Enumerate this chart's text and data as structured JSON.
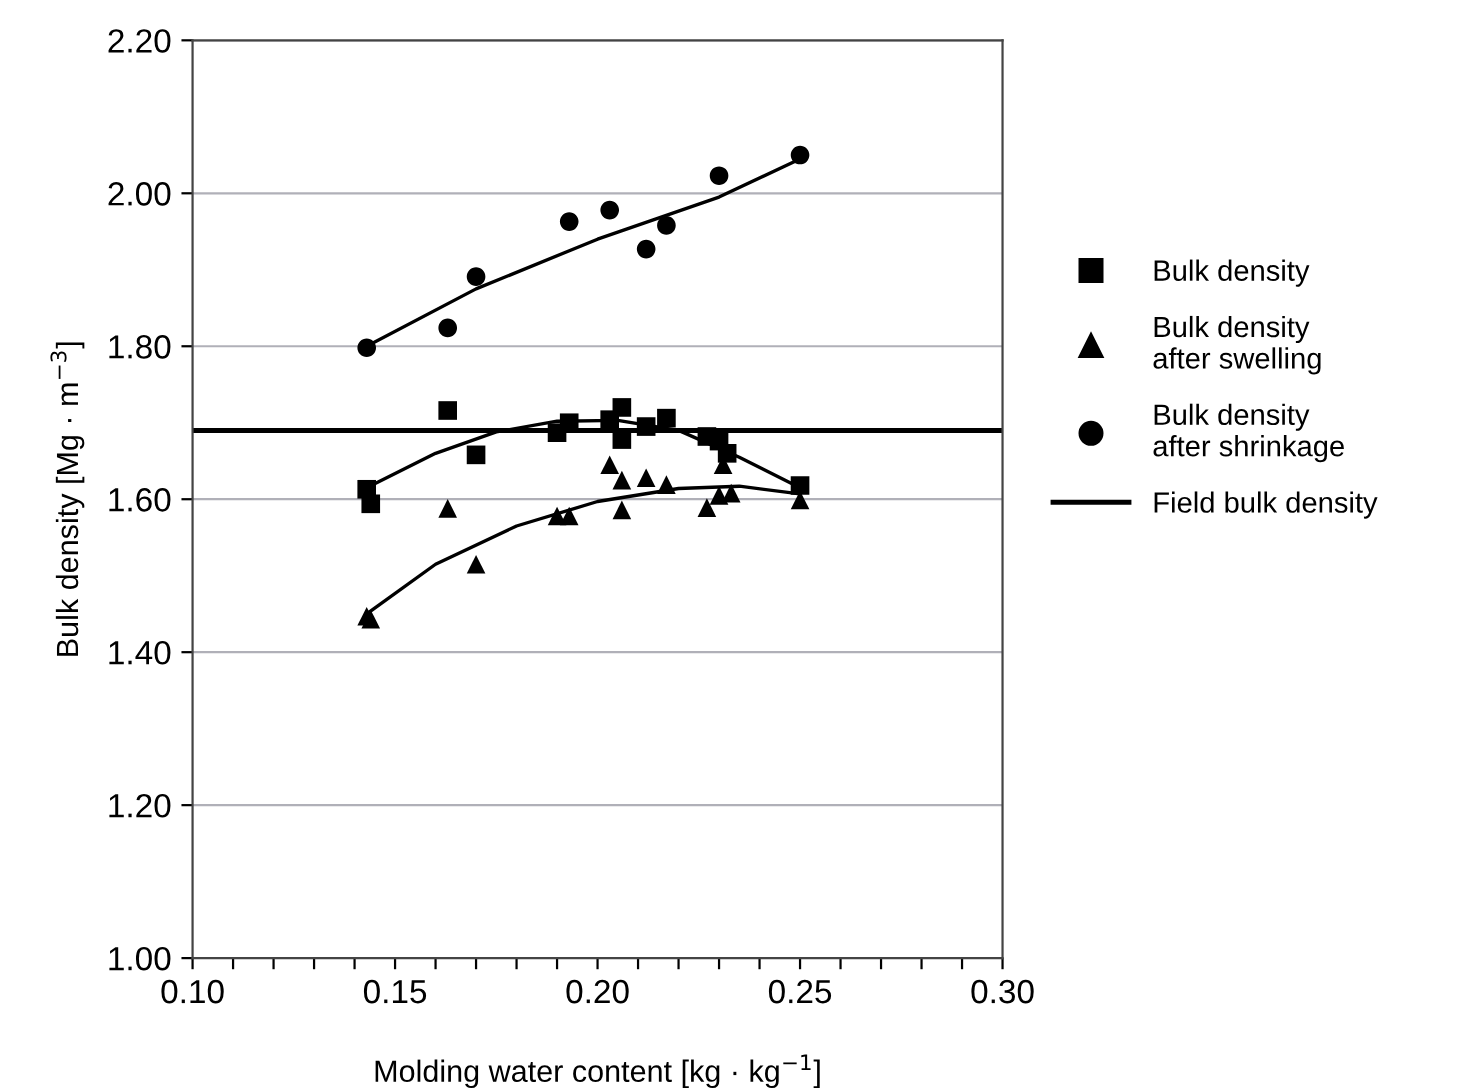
{
  "chart_data": {
    "type": "scatter",
    "xlabel": "Molding water content [kg · kg$^{−1}$]",
    "ylabel": "Bulk density [Mg · m$^{−3}$]",
    "xlim": [
      0.1,
      0.3
    ],
    "ylim": [
      1.0,
      2.2
    ],
    "xticks": [
      {
        "value": 0.1,
        "label": "0.10"
      },
      {
        "value": 0.11,
        "label": null
      },
      {
        "value": 0.12,
        "label": null
      },
      {
        "value": 0.13,
        "label": null
      },
      {
        "value": 0.14,
        "label": null
      },
      {
        "value": 0.15,
        "label": "0.15"
      },
      {
        "value": 0.16,
        "label": null
      },
      {
        "value": 0.17,
        "label": null
      },
      {
        "value": 0.18,
        "label": null
      },
      {
        "value": 0.19,
        "label": null
      },
      {
        "value": 0.2,
        "label": "0.20"
      },
      {
        "value": 0.21,
        "label": null
      },
      {
        "value": 0.22,
        "label": null
      },
      {
        "value": 0.23,
        "label": null
      },
      {
        "value": 0.24,
        "label": null
      },
      {
        "value": 0.25,
        "label": "0.25"
      },
      {
        "value": 0.26,
        "label": null
      },
      {
        "value": 0.27,
        "label": null
      },
      {
        "value": 0.28,
        "label": null
      },
      {
        "value": 0.29,
        "label": null
      },
      {
        "value": 0.3,
        "label": "0.30"
      }
    ],
    "yticks": [
      {
        "value": 1.0,
        "label": "1.00"
      },
      {
        "value": 1.2,
        "label": "1.20"
      },
      {
        "value": 1.4,
        "label": "1.40"
      },
      {
        "value": 1.6,
        "label": "1.60"
      },
      {
        "value": 1.8,
        "label": "1.80"
      },
      {
        "value": 2.0,
        "label": "2.00"
      },
      {
        "value": 2.2,
        "label": "2.20"
      }
    ],
    "grid": "y",
    "legend": "right",
    "series": [
      {
        "name": "Bulk density",
        "marker": "square",
        "color": "#000000",
        "x": [
          0.143,
          0.144,
          0.163,
          0.17,
          0.19,
          0.193,
          0.203,
          0.206,
          0.206,
          0.212,
          0.217,
          0.227,
          0.23,
          0.232,
          0.25
        ],
        "values": [
          1.613,
          1.594,
          1.716,
          1.658,
          1.687,
          1.7,
          1.704,
          1.72,
          1.678,
          1.695,
          1.706,
          1.682,
          1.676,
          1.66,
          1.618
        ]
      },
      {
        "name": "Bulk density\nafter swelling",
        "marker": "triangle",
        "color": "#000000",
        "x": [
          0.143,
          0.144,
          0.163,
          0.17,
          0.19,
          0.193,
          0.203,
          0.206,
          0.206,
          0.212,
          0.217,
          0.227,
          0.23,
          0.231,
          0.233,
          0.25
        ],
        "values": [
          1.447,
          1.443,
          1.588,
          1.515,
          1.578,
          1.578,
          1.645,
          1.625,
          1.586,
          1.628,
          1.619,
          1.589,
          1.605,
          1.645,
          1.608,
          1.599
        ]
      },
      {
        "name": "Bulk density\nafter shrinkage",
        "marker": "circle",
        "color": "#000000",
        "x": [
          0.143,
          0.163,
          0.17,
          0.193,
          0.203,
          0.212,
          0.217,
          0.23,
          0.25
        ],
        "values": [
          1.798,
          1.824,
          1.891,
          1.963,
          1.978,
          1.927,
          1.958,
          2.023,
          2.05
        ]
      },
      {
        "type": "line",
        "marker": "none",
        "color": "#000000",
        "x": [
          0.143,
          0.16,
          0.175,
          0.19,
          0.205,
          0.22,
          0.235,
          0.25
        ],
        "values": [
          1.615,
          1.66,
          1.688,
          1.702,
          1.703,
          1.69,
          1.655,
          1.615
        ]
      },
      {
        "type": "line",
        "marker": "none",
        "color": "#000000",
        "x": [
          0.143,
          0.16,
          0.18,
          0.2,
          0.22,
          0.235,
          0.25
        ],
        "values": [
          1.45,
          1.515,
          1.565,
          1.597,
          1.614,
          1.617,
          1.607
        ]
      },
      {
        "type": "line",
        "marker": "none",
        "color": "#000000",
        "x": [
          0.143,
          0.17,
          0.2,
          0.23,
          0.25
        ],
        "values": [
          1.8,
          1.875,
          1.94,
          1.995,
          2.045
        ]
      }
    ],
    "ref_lines": [
      {
        "axis": "y",
        "value": 1.69,
        "label": "Field bulk density",
        "color": "#000000",
        "line_style": "solid"
      }
    ]
  }
}
